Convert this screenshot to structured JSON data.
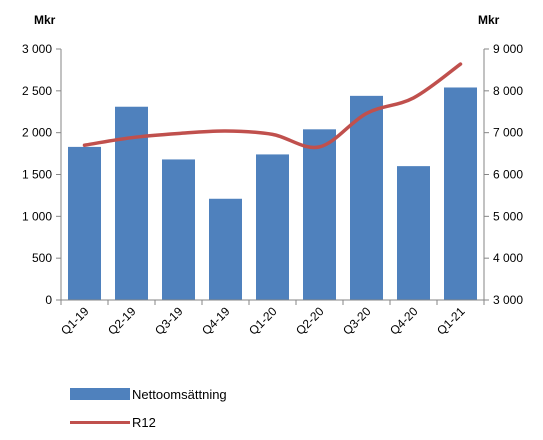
{
  "chart_data": {
    "type": "bar",
    "categories": [
      "Q1-19",
      "Q2-19",
      "Q3-19",
      "Q4-19",
      "Q1-20",
      "Q2-20",
      "Q3-20",
      "Q4-20",
      "Q1-21"
    ],
    "series": [
      {
        "name": "Nettoomsättning",
        "type": "bar",
        "axis": "left",
        "values": [
          1830,
          2310,
          1680,
          1210,
          1740,
          2040,
          2440,
          1600,
          2540
        ]
      },
      {
        "name": "R12",
        "type": "line",
        "axis": "right",
        "values": [
          6700,
          6880,
          6980,
          7040,
          6960,
          6660,
          7460,
          7830,
          8640
        ]
      }
    ],
    "left_axis": {
      "unit": "Mkr",
      "ylim": [
        0,
        3000
      ],
      "ticks": [
        0,
        500,
        1000,
        1500,
        2000,
        2500,
        3000
      ],
      "tick_labels": [
        "0",
        "500",
        "1 000",
        "1 500",
        "2 000",
        "2 500",
        "3 000"
      ]
    },
    "right_axis": {
      "unit": "Mkr",
      "ylim": [
        3000,
        9000
      ],
      "ticks": [
        3000,
        4000,
        5000,
        6000,
        7000,
        8000,
        9000
      ],
      "tick_labels": [
        "3 000",
        "4 000",
        "5 000",
        "6 000",
        "7 000",
        "8 000",
        "9 000"
      ]
    },
    "grid": false,
    "legend_position": "bottom-left",
    "colors": {
      "bar": "#4f81bd",
      "line": "#c0504d"
    }
  }
}
